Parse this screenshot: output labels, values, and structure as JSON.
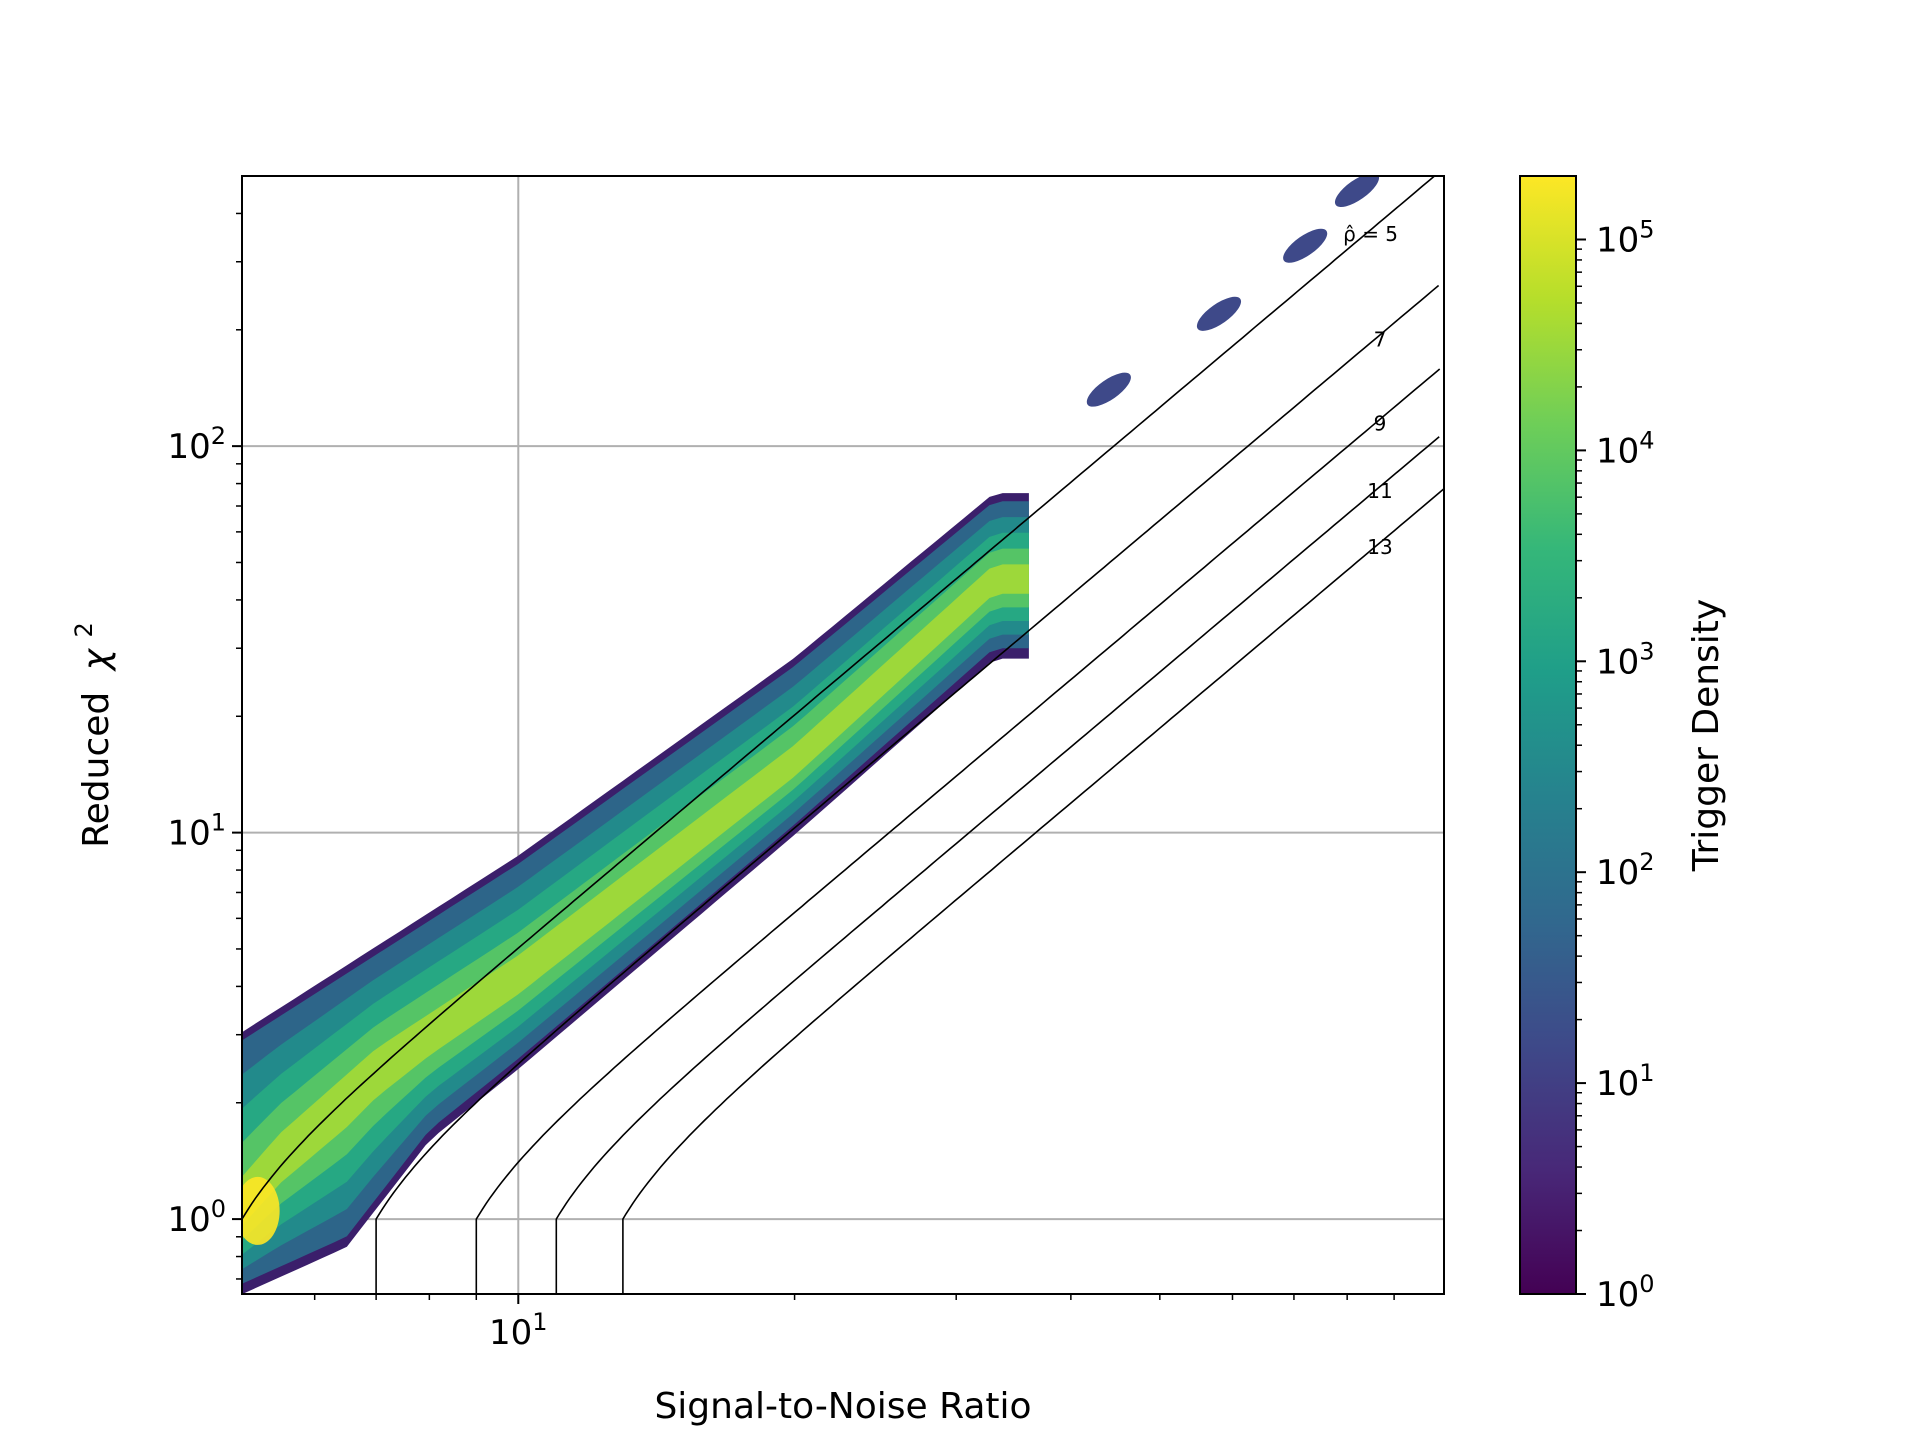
{
  "chart_data": {
    "type": "heatmap",
    "title": "",
    "xlabel": "Signal-to-Noise Ratio",
    "ylabel_text": "Reduced",
    "ylabel_symbol": "χ",
    "ylabel_sup": "2",
    "x_scale": "log",
    "y_scale": "log",
    "xlim": [
      5.0,
      102.0
    ],
    "ylim": [
      0.64,
      500.0
    ],
    "grid": true,
    "x_major_ticks": [
      {
        "value": 10,
        "base": "10",
        "exp": "1"
      }
    ],
    "y_major_ticks": [
      {
        "value": 1,
        "base": "10",
        "exp": "0"
      },
      {
        "value": 10,
        "base": "10",
        "exp": "1"
      },
      {
        "value": 100,
        "base": "10",
        "exp": "2"
      }
    ],
    "colorbar": {
      "label": "Trigger Density",
      "scale": "log",
      "range": [
        1,
        200000
      ],
      "colormap": "viridis",
      "ticks": [
        {
          "value": 1,
          "base": "10",
          "exp": "0"
        },
        {
          "value": 10,
          "base": "10",
          "exp": "1"
        },
        {
          "value": 100,
          "base": "10",
          "exp": "2"
        },
        {
          "value": 1000,
          "base": "10",
          "exp": "3"
        },
        {
          "value": 10000,
          "base": "10",
          "exp": "4"
        },
        {
          "value": 100000,
          "base": "10",
          "exp": "5"
        }
      ],
      "colors": [
        "#440154",
        "#482878",
        "#3e4989",
        "#31688e",
        "#26828e",
        "#1f9e89",
        "#35b779",
        "#6ece58",
        "#b5de2b",
        "#fde725"
      ]
    },
    "density_band": {
      "description_free": true,
      "snr_range": [
        5.0,
        36.0
      ],
      "upper_edge": [
        [
          5.0,
          2.9
        ],
        [
          10.0,
          8.3
        ],
        [
          20.0,
          27.0
        ],
        [
          33.0,
          72.0
        ]
      ],
      "lower_edge": [
        [
          5.0,
          0.68
        ],
        [
          6.5,
          0.9
        ],
        [
          8.0,
          1.7
        ],
        [
          10.0,
          2.6
        ],
        [
          20.0,
          10.5
        ],
        [
          33.0,
          30.0
        ]
      ],
      "ridge": [
        [
          5.0,
          1.05
        ],
        [
          5.5,
          1.4
        ],
        [
          7.0,
          2.4
        ],
        [
          10.0,
          4.2
        ],
        [
          20.0,
          15.0
        ],
        [
          33.0,
          45.0
        ]
      ],
      "outliers": [
        {
          "snr": 44.0,
          "chi2": 140.0
        },
        {
          "snr": 58.0,
          "chi2": 220.0
        },
        {
          "snr": 72.0,
          "chi2": 330.0
        },
        {
          "snr": 82.0,
          "chi2": 460.0
        }
      ]
    },
    "contours": [
      {
        "label": "ρ̂ = 5",
        "rho": 5
      },
      {
        "label": "7",
        "rho": 7
      },
      {
        "label": "9",
        "rho": 9
      },
      {
        "label": "11",
        "rho": 11
      },
      {
        "label": "13",
        "rho": 13
      }
    ]
  }
}
